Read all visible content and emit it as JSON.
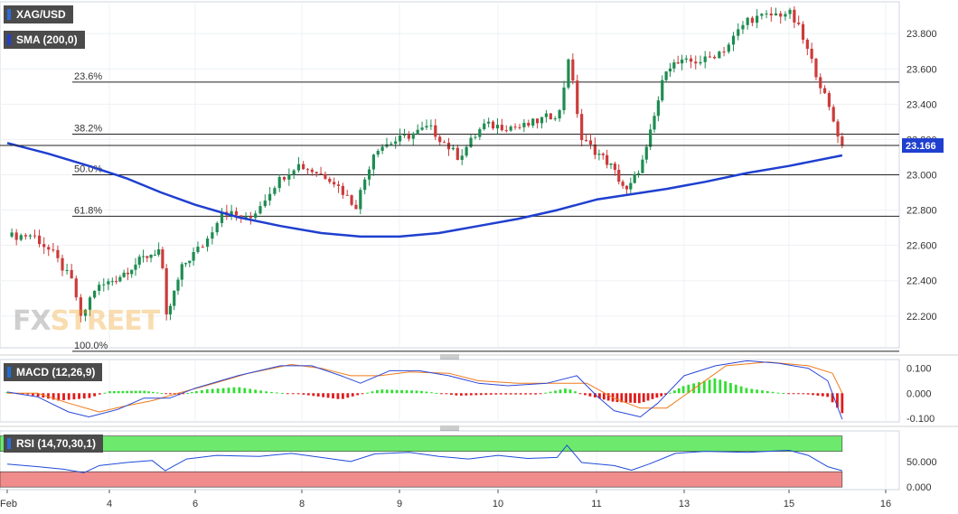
{
  "symbol": "XAG/USD",
  "watermark": {
    "part1": "FX",
    "part2": "STREET"
  },
  "colors": {
    "bull": "#1e8c52",
    "bear": "#cc3b3b",
    "sma": "#1f3fcf",
    "macd": "#2b48d8",
    "signal": "#f07a1a",
    "hist_pos": "#33dd33",
    "hist_neg": "#e01a1a",
    "rsi_line": "#1f4bd8",
    "overbought_zone": "#6dea6d",
    "oversold_zone": "#f08c8c",
    "last_price_bg": "#1f3fcf"
  },
  "chart_data": [
    {
      "type": "candlestick",
      "series_label": "XAG/USD",
      "indicator": {
        "label": "SMA (200,0)"
      },
      "x_ticks": [
        {
          "label": "Feb",
          "t": 0
        },
        {
          "label": "4",
          "t": 1
        },
        {
          "label": "6",
          "t": 2
        },
        {
          "label": "8",
          "t": 3
        },
        {
          "label": "9",
          "t": 4
        },
        {
          "label": "10",
          "t": 5
        },
        {
          "label": "11",
          "t": 6
        },
        {
          "label": "13",
          "t": 7
        },
        {
          "label": "15",
          "t": 8
        },
        {
          "label": "16",
          "t": 9
        }
      ],
      "y_ticks": [
        22.2,
        22.4,
        22.6,
        22.8,
        23.0,
        23.2,
        23.4,
        23.6,
        23.8
      ],
      "y_tick_labels": [
        "22.200",
        "22.400",
        "22.600",
        "22.800",
        "23.000",
        "23.200",
        "23.400",
        "23.600",
        "23.800"
      ],
      "ylim": [
        22.02,
        23.98
      ],
      "fibonacci": [
        {
          "label": "23.6%",
          "value": 23.525
        },
        {
          "label": "38.2%",
          "value": 23.23
        },
        {
          "label": "50.0%",
          "value": 23.0
        },
        {
          "label": "61.8%",
          "value": 22.765
        },
        {
          "label": "100.0%",
          "value": 22.0
        }
      ],
      "last_price": {
        "label": "23.166",
        "value": 23.166
      },
      "price_path": [
        [
          0.0,
          22.65
        ],
        [
          0.25,
          22.66
        ],
        [
          0.45,
          22.55
        ],
        [
          0.65,
          22.38
        ],
        [
          0.72,
          22.18
        ],
        [
          0.85,
          22.35
        ],
        [
          1.1,
          22.42
        ],
        [
          1.4,
          22.53
        ],
        [
          1.6,
          22.58
        ],
        [
          1.66,
          22.18
        ],
        [
          1.85,
          22.48
        ],
        [
          2.1,
          22.62
        ],
        [
          2.25,
          22.8
        ],
        [
          2.5,
          22.74
        ],
        [
          2.75,
          22.95
        ],
        [
          2.95,
          23.06
        ],
        [
          3.3,
          22.98
        ],
        [
          3.55,
          22.82
        ],
        [
          3.75,
          23.15
        ],
        [
          4.0,
          23.2
        ],
        [
          4.3,
          23.27
        ],
        [
          4.6,
          23.1
        ],
        [
          4.85,
          23.28
        ],
        [
          5.25,
          23.27
        ],
        [
          5.65,
          23.36
        ],
        [
          5.7,
          23.72
        ],
        [
          5.85,
          23.2
        ],
        [
          6.15,
          23.06
        ],
        [
          6.35,
          22.9
        ],
        [
          6.55,
          23.1
        ],
        [
          6.8,
          23.62
        ],
        [
          7.2,
          23.65
        ],
        [
          7.4,
          23.72
        ],
        [
          7.6,
          23.88
        ],
        [
          7.8,
          23.9
        ],
        [
          8.0,
          23.92
        ],
        [
          8.1,
          23.83
        ],
        [
          8.3,
          23.55
        ],
        [
          8.55,
          23.166
        ]
      ],
      "sma_path": [
        [
          0.0,
          23.18
        ],
        [
          0.4,
          23.12
        ],
        [
          0.8,
          23.05
        ],
        [
          1.2,
          22.98
        ],
        [
          1.6,
          22.9
        ],
        [
          2.0,
          22.83
        ],
        [
          2.4,
          22.76
        ],
        [
          2.8,
          22.71
        ],
        [
          3.2,
          22.67
        ],
        [
          3.6,
          22.65
        ],
        [
          4.0,
          22.65
        ],
        [
          4.4,
          22.67
        ],
        [
          4.8,
          22.71
        ],
        [
          5.2,
          22.75
        ],
        [
          5.6,
          22.8
        ],
        [
          6.0,
          22.86
        ],
        [
          6.4,
          22.89
        ],
        [
          6.8,
          22.92
        ],
        [
          7.2,
          22.96
        ],
        [
          7.6,
          23.01
        ],
        [
          8.0,
          23.05
        ],
        [
          8.55,
          23.11
        ]
      ]
    },
    {
      "type": "macd",
      "label": "MACD (12,26,9)",
      "y_ticks": [
        -0.1,
        0.0,
        0.1
      ],
      "y_tick_labels": [
        "-0.100",
        "0.000",
        "0.100"
      ],
      "ylim": [
        -0.115,
        0.135
      ],
      "macd_path": [
        [
          0.0,
          0.005
        ],
        [
          0.3,
          -0.015
        ],
        [
          0.6,
          -0.075
        ],
        [
          0.8,
          -0.095
        ],
        [
          1.1,
          -0.065
        ],
        [
          1.4,
          -0.02
        ],
        [
          1.7,
          -0.02
        ],
        [
          2.0,
          0.02
        ],
        [
          2.4,
          0.07
        ],
        [
          2.8,
          0.11
        ],
        [
          3.1,
          0.11
        ],
        [
          3.4,
          0.07
        ],
        [
          3.6,
          0.04
        ],
        [
          3.9,
          0.09
        ],
        [
          4.2,
          0.09
        ],
        [
          4.5,
          0.07
        ],
        [
          4.8,
          0.04
        ],
        [
          5.1,
          0.03
        ],
        [
          5.5,
          0.04
        ],
        [
          5.8,
          0.07
        ],
        [
          6.0,
          -0.01
        ],
        [
          6.2,
          -0.07
        ],
        [
          6.5,
          -0.095
        ],
        [
          6.7,
          -0.04
        ],
        [
          7.0,
          0.07
        ],
        [
          7.3,
          0.11
        ],
        [
          7.6,
          0.13
        ],
        [
          7.9,
          0.12
        ],
        [
          8.2,
          0.1
        ],
        [
          8.4,
          0.05
        ],
        [
          8.55,
          -0.105
        ]
      ],
      "signal_path": [
        [
          0.0,
          0.0
        ],
        [
          0.3,
          0.0
        ],
        [
          0.6,
          -0.04
        ],
        [
          0.9,
          -0.075
        ],
        [
          1.2,
          -0.05
        ],
        [
          1.5,
          -0.03
        ],
        [
          1.8,
          0.0
        ],
        [
          2.1,
          0.03
        ],
        [
          2.5,
          0.08
        ],
        [
          2.9,
          0.115
        ],
        [
          3.2,
          0.1
        ],
        [
          3.5,
          0.07
        ],
        [
          3.8,
          0.07
        ],
        [
          4.1,
          0.085
        ],
        [
          4.5,
          0.08
        ],
        [
          4.8,
          0.05
        ],
        [
          5.2,
          0.04
        ],
        [
          5.6,
          0.04
        ],
        [
          5.9,
          0.04
        ],
        [
          6.2,
          -0.02
        ],
        [
          6.5,
          -0.06
        ],
        [
          6.8,
          -0.06
        ],
        [
          7.1,
          0.02
        ],
        [
          7.4,
          0.11
        ],
        [
          7.8,
          0.125
        ],
        [
          8.2,
          0.11
        ],
        [
          8.45,
          0.08
        ],
        [
          8.55,
          0.0
        ]
      ],
      "histogram_path": [
        [
          0.0,
          0.005
        ],
        [
          0.2,
          -0.005
        ],
        [
          0.5,
          -0.03
        ],
        [
          0.8,
          -0.02
        ],
        [
          1.0,
          0.008
        ],
        [
          1.4,
          0.01
        ],
        [
          1.8,
          -0.008
        ],
        [
          2.1,
          0.015
        ],
        [
          2.4,
          0.025
        ],
        [
          2.7,
          0.005
        ],
        [
          3.0,
          -0.005
        ],
        [
          3.4,
          -0.025
        ],
        [
          3.8,
          0.015
        ],
        [
          4.2,
          0.01
        ],
        [
          4.6,
          -0.01
        ],
        [
          5.0,
          -0.005
        ],
        [
          5.4,
          -0.005
        ],
        [
          5.7,
          0.02
        ],
        [
          5.9,
          -0.01
        ],
        [
          6.2,
          -0.035
        ],
        [
          6.5,
          -0.04
        ],
        [
          6.8,
          -0.005
        ],
        [
          7.0,
          0.03
        ],
        [
          7.3,
          0.06
        ],
        [
          7.6,
          0.02
        ],
        [
          7.9,
          0.002
        ],
        [
          8.2,
          -0.005
        ],
        [
          8.4,
          -0.015
        ],
        [
          8.55,
          -0.08
        ]
      ]
    },
    {
      "type": "rsi",
      "label": "RSI (14,70,30,1)",
      "y_ticks": [
        0,
        50
      ],
      "y_tick_labels": [
        "0.000",
        "50.000"
      ],
      "ylim": [
        -5,
        110
      ],
      "overbought": 70,
      "oversold": 30,
      "rsi_path": [
        [
          0.0,
          45
        ],
        [
          0.3,
          40
        ],
        [
          0.55,
          35
        ],
        [
          0.75,
          28
        ],
        [
          0.9,
          42
        ],
        [
          1.2,
          48
        ],
        [
          1.5,
          52
        ],
        [
          1.65,
          32
        ],
        [
          1.9,
          55
        ],
        [
          2.2,
          62
        ],
        [
          2.6,
          60
        ],
        [
          2.9,
          66
        ],
        [
          3.2,
          58
        ],
        [
          3.5,
          50
        ],
        [
          3.75,
          65
        ],
        [
          4.1,
          68
        ],
        [
          4.4,
          60
        ],
        [
          4.7,
          55
        ],
        [
          5.0,
          62
        ],
        [
          5.3,
          56
        ],
        [
          5.6,
          58
        ],
        [
          5.7,
          82
        ],
        [
          5.85,
          48
        ],
        [
          6.2,
          42
        ],
        [
          6.4,
          33
        ],
        [
          6.6,
          45
        ],
        [
          6.9,
          66
        ],
        [
          7.2,
          70
        ],
        [
          7.6,
          68
        ],
        [
          8.0,
          72
        ],
        [
          8.2,
          62
        ],
        [
          8.4,
          40
        ],
        [
          8.55,
          32
        ]
      ]
    }
  ]
}
